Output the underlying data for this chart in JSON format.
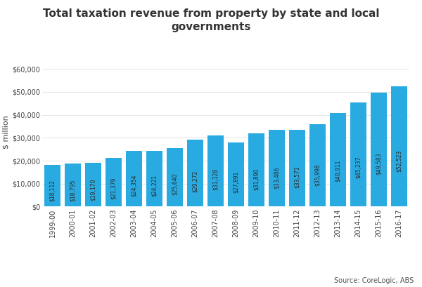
{
  "title": "Total taxation revenue from property by state and local\ngovernments",
  "ylabel": "$ million",
  "source": "Source: CoreLogic, ABS",
  "bar_color": "#29ABE2",
  "background_color": "#ffffff",
  "categories": [
    "1999-00",
    "2000-01",
    "2001-02",
    "2002-03",
    "2003-04",
    "2004-05",
    "2005-06",
    "2006-07",
    "2007-08",
    "2008-09",
    "2009-10",
    "2010-11",
    "2011-12",
    "2012-13",
    "2013-14",
    "2014-15",
    "2015-16",
    "2016-17"
  ],
  "values": [
    18112,
    18795,
    19170,
    21379,
    24354,
    24221,
    25640,
    29272,
    31128,
    27891,
    31890,
    33486,
    33571,
    35998,
    40911,
    45237,
    49583,
    52523
  ],
  "labels": [
    "$18,112",
    "$18,795",
    "$19,170",
    "$21,379",
    "$24,354",
    "$24,221",
    "$25,640",
    "$29,272",
    "$31,128",
    "$27,891",
    "$31,890",
    "$33,486",
    "$33,571",
    "$35,998",
    "$40,911",
    "$45,237",
    "$49,583",
    "$52,523"
  ],
  "ylim": [
    0,
    65000
  ],
  "yticks": [
    0,
    10000,
    20000,
    30000,
    40000,
    50000,
    60000
  ],
  "title_fontsize": 11,
  "label_fontsize": 5.5,
  "tick_fontsize": 7
}
